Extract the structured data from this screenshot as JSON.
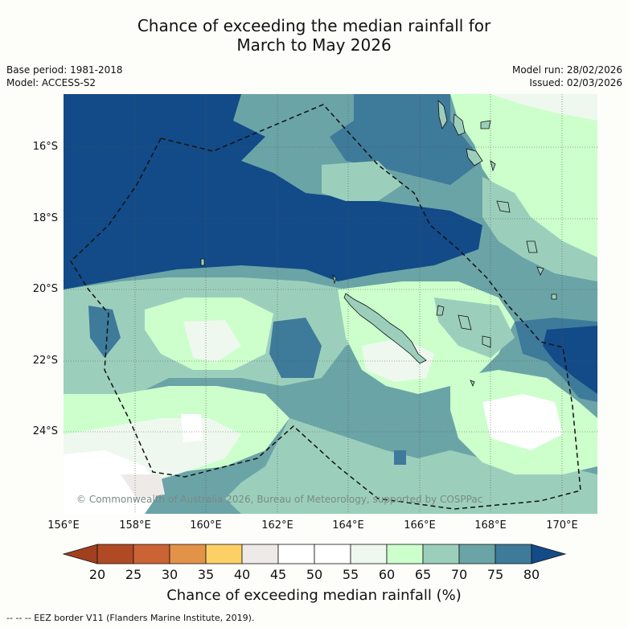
{
  "title": {
    "line1": "Chance of exceeding the median rainfall for",
    "line2": "March to May 2026"
  },
  "meta": {
    "base_period": "Base period: 1981-2018",
    "model": "Model: ACCESS-S2",
    "model_run": "Model run: 28/02/2026",
    "issued": "Issued: 02/03/2026"
  },
  "map": {
    "credit": "© Commonwealth of Australia 2026, Bureau of Meteorology, supported by COSPPac",
    "x_ticks": [
      "156°E",
      "158°E",
      "160°E",
      "162°E",
      "164°E",
      "166°E",
      "168°E",
      "170°E"
    ],
    "y_ticks": [
      "16°S",
      "18°S",
      "20°S",
      "22°S",
      "24°S"
    ]
  },
  "colorbar": {
    "ticks": [
      "20",
      "25",
      "30",
      "35",
      "40",
      "45",
      "50",
      "55",
      "60",
      "65",
      "70",
      "75",
      "80"
    ],
    "colors": [
      "#a0401e",
      "#b04a24",
      "#cc6334",
      "#e39347",
      "#fdd066",
      "#eeeae8",
      "#ffffff",
      "#ffffff",
      "#eef8ee",
      "#ccffcc",
      "#9ccfbb",
      "#6ba4a6",
      "#3e7a9a",
      "#124b88"
    ],
    "label": "Chance of exceeding median rainfall (%)"
  },
  "legend": "--  --  -- EEZ border V11 (Flanders Marine Institute, 2019)."
}
